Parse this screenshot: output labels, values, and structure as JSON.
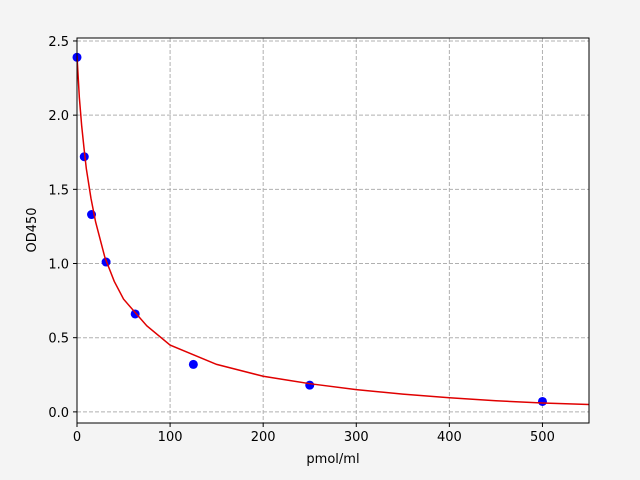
{
  "chart_data": {
    "type": "scatter",
    "xlabel": "pmol/ml",
    "ylabel": "OD450",
    "xlim": [
      0,
      550
    ],
    "ylim": [
      -0.075,
      2.52
    ],
    "xticks": [
      0,
      100,
      200,
      300,
      400,
      500
    ],
    "yticks": [
      {
        "value": 0,
        "label": "0.0"
      },
      0.5,
      {
        "value": 1,
        "label": "1.0"
      },
      1.5,
      {
        "value": 2,
        "label": "2.0"
      },
      2.5
    ],
    "grid": true,
    "series": [
      {
        "type": "scatter",
        "color": "#0000ff",
        "x": [
          0,
          7.8,
          15.6,
          31.25,
          62.5,
          125,
          250,
          500
        ],
        "values": [
          2.39,
          1.72,
          1.33,
          1.01,
          0.66,
          0.32,
          0.18,
          0.07
        ]
      },
      {
        "type": "line",
        "color": "#e00000",
        "x": [
          0,
          2.5,
          5,
          7.5,
          10,
          15,
          20,
          30,
          40,
          50,
          75,
          100,
          150,
          200,
          250,
          300,
          350,
          400,
          450,
          500,
          550
        ],
        "values": [
          2.4,
          2.12,
          1.93,
          1.78,
          1.64,
          1.44,
          1.28,
          1.04,
          0.88,
          0.76,
          0.58,
          0.45,
          0.32,
          0.24,
          0.19,
          0.15,
          0.12,
          0.095,
          0.075,
          0.06,
          0.05
        ]
      }
    ]
  }
}
